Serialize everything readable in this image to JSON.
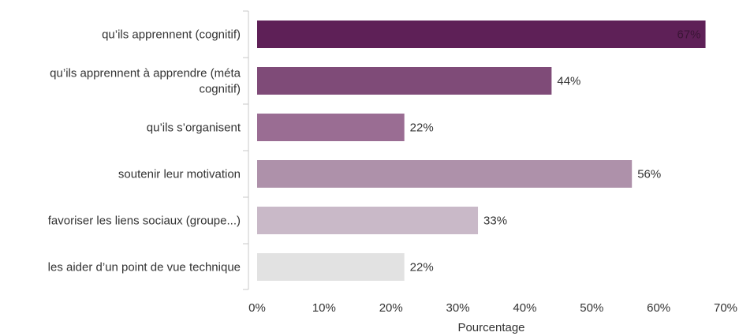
{
  "chart_data": {
    "type": "bar",
    "orientation": "horizontal",
    "title": "",
    "xlabel": "Pourcentage",
    "ylabel": "",
    "xlim": [
      0,
      70
    ],
    "x_ticks": [
      0,
      10,
      20,
      30,
      40,
      50,
      60,
      70
    ],
    "tick_suffix": "%",
    "grid": false,
    "legend": "none",
    "categories": [
      [
        "qu’ils apprennent (cognitif)"
      ],
      [
        "qu’ils apprennent à apprendre (méta",
        "cognitif)"
      ],
      [
        "qu’ils s’organisent"
      ],
      [
        "soutenir leur motivation"
      ],
      [
        "favoriser les liens sociaux (groupe...)"
      ],
      [
        "les aider d’un point de vue technique"
      ]
    ],
    "values": [
      67,
      44,
      22,
      56,
      33,
      22
    ],
    "value_labels": [
      "67%",
      "44%",
      "22%",
      "56%",
      "33%",
      "22%"
    ],
    "colors": [
      "#5e2057",
      "#7f4b78",
      "#9a6d93",
      "#ae91aa",
      "#c9b9c8",
      "#e2e2e2"
    ],
    "label_colors": [
      "#3a1535",
      "#333333",
      "#333333",
      "#333333",
      "#333333",
      "#333333"
    ]
  }
}
